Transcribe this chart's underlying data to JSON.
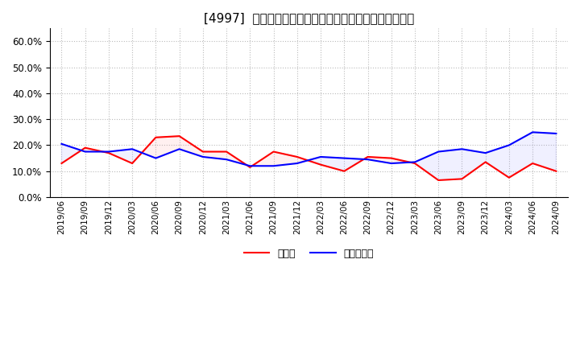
{
  "title": "[4997]  現預金、有利子負債の総資産に対する比率の推移",
  "ylim": [
    0.0,
    0.65
  ],
  "yticks": [
    0.0,
    0.1,
    0.2,
    0.3,
    0.4,
    0.5,
    0.6
  ],
  "legend_labels": [
    "現預金",
    "有利子負債"
  ],
  "line_colors": [
    "#ff0000",
    "#0000ff"
  ],
  "background_color": "#ffffff",
  "grid_color": "#bbbbbb",
  "dates": [
    "2019/06",
    "2019/09",
    "2019/12",
    "2020/03",
    "2020/06",
    "2020/09",
    "2020/12",
    "2021/03",
    "2021/06",
    "2021/09",
    "2021/12",
    "2022/03",
    "2022/06",
    "2022/09",
    "2022/12",
    "2023/03",
    "2023/06",
    "2023/09",
    "2023/12",
    "2024/03",
    "2024/06",
    "2024/09"
  ],
  "cash": [
    0.13,
    0.19,
    0.17,
    0.13,
    0.23,
    0.235,
    0.175,
    0.175,
    0.115,
    0.175,
    0.155,
    0.125,
    0.1,
    0.155,
    0.15,
    0.13,
    0.065,
    0.07,
    0.135,
    0.075,
    0.13,
    0.1
  ],
  "interest_bearing_debt": [
    0.205,
    0.175,
    0.175,
    0.185,
    0.15,
    0.185,
    0.155,
    0.145,
    0.12,
    0.12,
    0.13,
    0.155,
    0.15,
    0.145,
    0.13,
    0.135,
    0.175,
    0.185,
    0.17,
    0.2,
    0.25,
    0.245
  ]
}
